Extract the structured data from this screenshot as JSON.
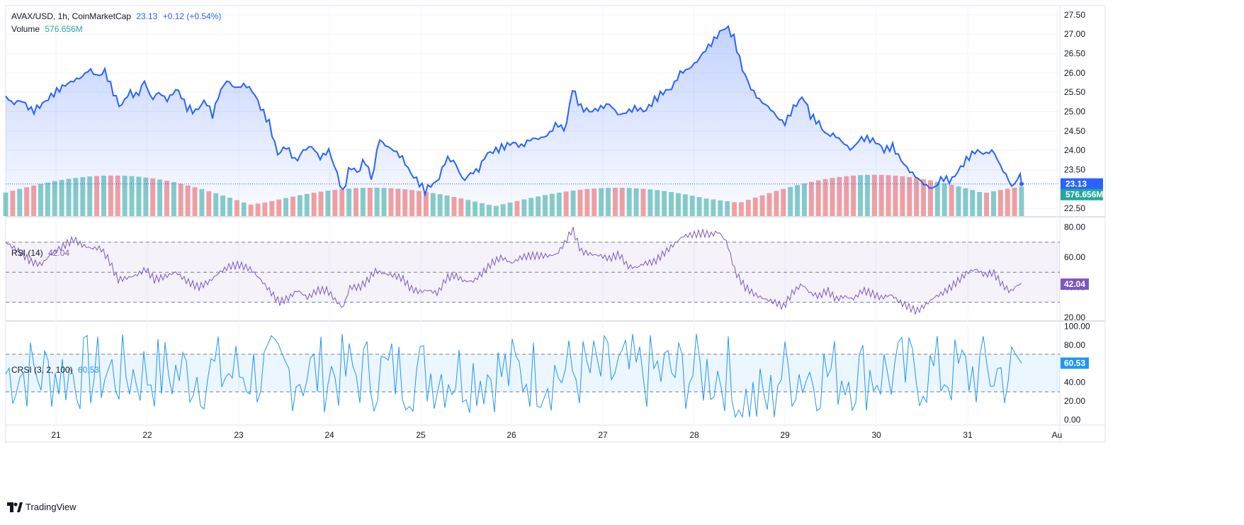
{
  "header": {
    "symbol_line": "AVAX/USD, 1h, CoinMarketCap",
    "last_price": "23.13",
    "change": "+0.12 (+0.54%)",
    "volume_label": "Volume",
    "volume_value": "576.656M"
  },
  "colors": {
    "price_line": "#2962ff",
    "volume_up": "#26a69a",
    "volume_down": "#ef5350",
    "rsi_line": "#7e57c2",
    "crsi_line": "#2196f3",
    "price_label_bg": "#2962ff",
    "volume_label_bg": "#26a69a",
    "rsi_label_bg": "#7e57c2",
    "crsi_label_bg": "#2196f3"
  },
  "brand": "TradingView",
  "chart_data": [
    {
      "type": "area",
      "name": "price",
      "ylim": [
        22.3,
        27.7
      ],
      "yticks": [
        "27.50",
        "27.00",
        "26.50",
        "26.00",
        "25.50",
        "25.00",
        "24.50",
        "24.00",
        "23.50",
        "22.50"
      ],
      "ytick_values": [
        27.5,
        27.0,
        26.5,
        26.0,
        25.5,
        25.0,
        24.5,
        24.0,
        23.5,
        22.5
      ],
      "xticks": [
        "21",
        "22",
        "23",
        "24",
        "25",
        "26",
        "27",
        "28",
        "29",
        "30",
        "31",
        "Au"
      ],
      "last_value": 23.13,
      "last_label": "23.13",
      "volume_last_label": "576.656M",
      "anchors": [
        [
          0,
          25.4
        ],
        [
          10,
          25.2
        ],
        [
          22,
          25.3
        ],
        [
          38,
          25.0
        ],
        [
          52,
          25.2
        ],
        [
          70,
          25.5
        ],
        [
          85,
          25.7
        ],
        [
          96,
          25.8
        ],
        [
          108,
          25.9
        ],
        [
          118,
          26.1
        ],
        [
          130,
          25.9
        ],
        [
          140,
          26.05
        ],
        [
          152,
          25.5
        ],
        [
          162,
          25.1
        ],
        [
          174,
          25.5
        ],
        [
          186,
          25.4
        ],
        [
          196,
          25.8
        ],
        [
          206,
          25.3
        ],
        [
          216,
          25.5
        ],
        [
          228,
          25.3
        ],
        [
          242,
          25.6
        ],
        [
          256,
          25.1
        ],
        [
          268,
          25.0
        ],
        [
          282,
          25.3
        ],
        [
          292,
          24.9
        ],
        [
          302,
          25.5
        ],
        [
          312,
          25.8
        ],
        [
          325,
          25.6
        ],
        [
          338,
          25.7
        ],
        [
          350,
          25.5
        ],
        [
          360,
          25.1
        ],
        [
          372,
          24.7
        ],
        [
          384,
          23.9
        ],
        [
          396,
          24.1
        ],
        [
          410,
          23.7
        ],
        [
          420,
          24.0
        ],
        [
          432,
          24.1
        ],
        [
          444,
          23.8
        ],
        [
          456,
          24.0
        ],
        [
          466,
          23.5
        ],
        [
          476,
          22.9
        ],
        [
          486,
          23.6
        ],
        [
          498,
          23.4
        ],
        [
          506,
          23.8
        ],
        [
          518,
          23.2
        ],
        [
          526,
          24.3
        ],
        [
          538,
          24.1
        ],
        [
          548,
          24.0
        ],
        [
          560,
          23.8
        ],
        [
          572,
          23.4
        ],
        [
          582,
          23.2
        ],
        [
          592,
          22.95
        ],
        [
          600,
          23.1
        ],
        [
          610,
          23.2
        ],
        [
          622,
          23.8
        ],
        [
          634,
          23.7
        ],
        [
          646,
          23.2
        ],
        [
          656,
          23.4
        ],
        [
          668,
          23.5
        ],
        [
          678,
          23.9
        ],
        [
          692,
          24.0
        ],
        [
          704,
          24.1
        ],
        [
          716,
          24.2
        ],
        [
          728,
          24.1
        ],
        [
          742,
          24.3
        ],
        [
          754,
          24.3
        ],
        [
          766,
          24.4
        ],
        [
          778,
          24.7
        ],
        [
          790,
          24.5
        ],
        [
          800,
          25.6
        ],
        [
          812,
          25.1
        ],
        [
          826,
          25.0
        ],
        [
          840,
          25.1
        ],
        [
          852,
          25.2
        ],
        [
          866,
          24.9
        ],
        [
          878,
          25.0
        ],
        [
          890,
          25.1
        ],
        [
          902,
          25.0
        ],
        [
          916,
          25.3
        ],
        [
          928,
          25.5
        ],
        [
          940,
          25.6
        ],
        [
          952,
          26.0
        ],
        [
          964,
          26.1
        ],
        [
          976,
          26.3
        ],
        [
          988,
          26.6
        ],
        [
          998,
          26.8
        ],
        [
          1008,
          27.05
        ],
        [
          1018,
          27.2
        ],
        [
          1028,
          26.9
        ],
        [
          1040,
          26.1
        ],
        [
          1052,
          25.6
        ],
        [
          1064,
          25.3
        ],
        [
          1078,
          25.1
        ],
        [
          1092,
          24.8
        ],
        [
          1100,
          24.7
        ],
        [
          1112,
          25.1
        ],
        [
          1126,
          25.4
        ],
        [
          1136,
          24.9
        ],
        [
          1148,
          24.7
        ],
        [
          1158,
          24.4
        ],
        [
          1170,
          24.4
        ],
        [
          1182,
          24.2
        ],
        [
          1194,
          24.0
        ],
        [
          1206,
          24.3
        ],
        [
          1218,
          24.3
        ],
        [
          1230,
          24.2
        ],
        [
          1240,
          24.0
        ],
        [
          1252,
          24.1
        ],
        [
          1262,
          23.8
        ],
        [
          1274,
          23.5
        ],
        [
          1286,
          23.3
        ],
        [
          1298,
          23.1
        ],
        [
          1310,
          23.0
        ],
        [
          1322,
          23.3
        ],
        [
          1334,
          23.2
        ],
        [
          1346,
          23.5
        ],
        [
          1358,
          23.8
        ],
        [
          1370,
          24.0
        ],
        [
          1382,
          23.9
        ],
        [
          1394,
          24.0
        ],
        [
          1404,
          23.6
        ],
        [
          1414,
          23.3
        ],
        [
          1422,
          23.0
        ],
        [
          1430,
          23.4
        ],
        [
          1438,
          23.05
        ],
        [
          1442,
          23.13
        ]
      ]
    },
    {
      "type": "bar",
      "name": "volume",
      "bar_count": 146
    },
    {
      "type": "line",
      "name": "RSI",
      "title": "RSI (14)",
      "last_label": "42.04",
      "ylim": [
        18,
        86
      ],
      "yticks": [
        "80.00",
        "60.00",
        "40.00",
        "20.00"
      ],
      "ytick_values": [
        80,
        60,
        40,
        20
      ],
      "bands": [
        70,
        50,
        30
      ],
      "anchors": [
        [
          0,
          70
        ],
        [
          12,
          66
        ],
        [
          24,
          62
        ],
        [
          36,
          57
        ],
        [
          50,
          55
        ],
        [
          64,
          62
        ],
        [
          80,
          67
        ],
        [
          96,
          72
        ],
        [
          108,
          68
        ],
        [
          120,
          66
        ],
        [
          134,
          66
        ],
        [
          146,
          58
        ],
        [
          158,
          45
        ],
        [
          170,
          46
        ],
        [
          184,
          48
        ],
        [
          198,
          52
        ],
        [
          210,
          45
        ],
        [
          224,
          47
        ],
        [
          240,
          50
        ],
        [
          256,
          44
        ],
        [
          272,
          40
        ],
        [
          288,
          44
        ],
        [
          302,
          50
        ],
        [
          316,
          54
        ],
        [
          330,
          55
        ],
        [
          346,
          52
        ],
        [
          360,
          45
        ],
        [
          372,
          38
        ],
        [
          386,
          30
        ],
        [
          400,
          33
        ],
        [
          412,
          38
        ],
        [
          426,
          33
        ],
        [
          440,
          38
        ],
        [
          454,
          38
        ],
        [
          466,
          31
        ],
        [
          476,
          26
        ],
        [
          486,
          40
        ],
        [
          500,
          40
        ],
        [
          512,
          45
        ],
        [
          522,
          51
        ],
        [
          534,
          49
        ],
        [
          546,
          48
        ],
        [
          560,
          46
        ],
        [
          572,
          39
        ],
        [
          584,
          37
        ],
        [
          596,
          38
        ],
        [
          610,
          36
        ],
        [
          622,
          46
        ],
        [
          634,
          48
        ],
        [
          648,
          44
        ],
        [
          660,
          44
        ],
        [
          672,
          49
        ],
        [
          686,
          56
        ],
        [
          700,
          60
        ],
        [
          714,
          56
        ],
        [
          728,
          60
        ],
        [
          742,
          61
        ],
        [
          756,
          61
        ],
        [
          768,
          61
        ],
        [
          778,
          62
        ],
        [
          790,
          70
        ],
        [
          800,
          79
        ],
        [
          812,
          64
        ],
        [
          826,
          62
        ],
        [
          840,
          61
        ],
        [
          852,
          59
        ],
        [
          866,
          62
        ],
        [
          878,
          54
        ],
        [
          890,
          53
        ],
        [
          902,
          56
        ],
        [
          916,
          57
        ],
        [
          930,
          63
        ],
        [
          942,
          68
        ],
        [
          956,
          74
        ],
        [
          970,
          75
        ],
        [
          984,
          76
        ],
        [
          996,
          75
        ],
        [
          1006,
          77
        ],
        [
          1018,
          70
        ],
        [
          1030,
          50
        ],
        [
          1044,
          40
        ],
        [
          1058,
          35
        ],
        [
          1072,
          32
        ],
        [
          1086,
          30
        ],
        [
          1098,
          27
        ],
        [
          1110,
          36
        ],
        [
          1124,
          42
        ],
        [
          1136,
          36
        ],
        [
          1148,
          34
        ],
        [
          1160,
          38
        ],
        [
          1172,
          32
        ],
        [
          1184,
          34
        ],
        [
          1196,
          32
        ],
        [
          1210,
          38
        ],
        [
          1222,
          36
        ],
        [
          1236,
          33
        ],
        [
          1250,
          35
        ],
        [
          1262,
          30
        ],
        [
          1274,
          27
        ],
        [
          1286,
          24
        ],
        [
          1298,
          28
        ],
        [
          1310,
          33
        ],
        [
          1322,
          36
        ],
        [
          1334,
          40
        ],
        [
          1346,
          45
        ],
        [
          1358,
          50
        ],
        [
          1370,
          52
        ],
        [
          1382,
          48
        ],
        [
          1394,
          50
        ],
        [
          1406,
          42
        ],
        [
          1418,
          37
        ],
        [
          1430,
          42
        ],
        [
          1442,
          42
        ]
      ]
    },
    {
      "type": "line",
      "name": "CRSI",
      "title": "CRSI (3, 2, 100)",
      "last_label": "60.53",
      "ylim": [
        -4,
        104
      ],
      "yticks": [
        "100.00",
        "80.00",
        "60.00",
        "40.00",
        "20.00",
        "0.00"
      ],
      "ytick_values": [
        100,
        80,
        60,
        40,
        20,
        0
      ],
      "bands": [
        70,
        30
      ],
      "last_value": 60.53
    }
  ]
}
